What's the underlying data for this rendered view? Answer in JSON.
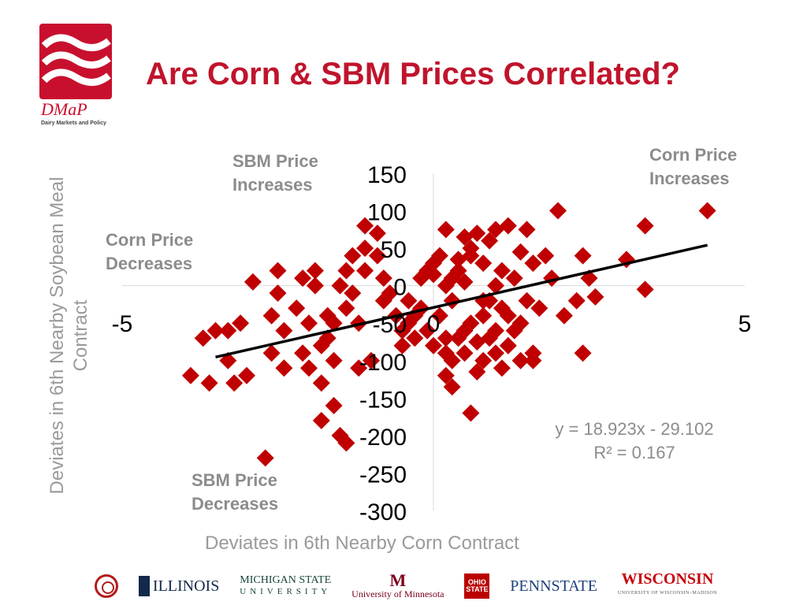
{
  "header": {
    "title": "Are Corn & SBM Prices Correlated?",
    "logo_text": "DMaP",
    "logo_subtitle": "Dairy Markets and Policy"
  },
  "quadrant_labels": {
    "corn_up": "Corn Price\nIncreases",
    "corn_down": "Corn Price\nDecreases",
    "sbm_up": "SBM Price\nIncreases",
    "sbm_down": "SBM Price\nDecreases"
  },
  "trendline": {
    "equation": "y = 18.923x - 29.102",
    "r_squared": "R² = 0.167"
  },
  "footer": {
    "illinois": "ILLINOIS",
    "michigan_line1": "MICHIGAN STATE",
    "michigan_line2": "UNIVERSITY",
    "minnesota_mark": "M",
    "minnesota": "University of Minnesota",
    "ohio_state": "OHIO STATE",
    "penn_state": "PENNSTATE",
    "wisconsin": "WISCONSIN",
    "wisconsin_sub": "UNIVERSITY OF WISCONSIN–MADISON"
  },
  "colors": {
    "title": "#c0142c",
    "points": "#c00000",
    "trendline": "#000000",
    "labels": "#8c8c8c"
  },
  "chart_data": {
    "type": "scatter",
    "title": "",
    "xlabel": "Deviates in 6th Nearby Corn Contract",
    "ylabel": "Deviates in 6th Nearby Soybean Meal Contract",
    "xlim": [
      -5,
      5
    ],
    "ylim": [
      -300,
      150
    ],
    "x_ticks": [
      "-5",
      "0",
      "5"
    ],
    "y_ticks": [
      "150",
      "100",
      "50",
      "0",
      "-50",
      "-100",
      "-150",
      "-200",
      "-250",
      "-300"
    ],
    "grid": false,
    "trendline": {
      "slope": 18.923,
      "intercept": -29.102
    },
    "series": [
      {
        "points": [
          [
            4.4,
            100
          ],
          [
            3.4,
            80
          ],
          [
            3.1,
            35
          ],
          [
            3.4,
            -5
          ],
          [
            2.0,
            100
          ],
          [
            2.4,
            40
          ],
          [
            2.1,
            -40
          ],
          [
            2.4,
            -90
          ],
          [
            2.5,
            10
          ],
          [
            2.3,
            -20
          ],
          [
            2.6,
            -15
          ],
          [
            1.5,
            75
          ],
          [
            1.2,
            80
          ],
          [
            1.0,
            75
          ],
          [
            0.9,
            60
          ],
          [
            0.7,
            70
          ],
          [
            0.5,
            65
          ],
          [
            0.2,
            75
          ],
          [
            0.6,
            40
          ],
          [
            0.8,
            30
          ],
          [
            0.3,
            10
          ],
          [
            0.5,
            5
          ],
          [
            0.2,
            0
          ],
          [
            0.0,
            15
          ],
          [
            0.1,
            40
          ],
          [
            -0.1,
            20
          ],
          [
            -0.2,
            10
          ],
          [
            1.8,
            40
          ],
          [
            1.4,
            45
          ],
          [
            1.1,
            20
          ],
          [
            1.0,
            0
          ],
          [
            0.8,
            -20
          ],
          [
            1.1,
            -30
          ],
          [
            0.8,
            -40
          ],
          [
            0.6,
            -50
          ],
          [
            0.5,
            -60
          ],
          [
            0.4,
            -70
          ],
          [
            0.7,
            -75
          ],
          [
            0.9,
            -70
          ],
          [
            1.0,
            -60
          ],
          [
            1.3,
            -60
          ],
          [
            1.2,
            -80
          ],
          [
            1.4,
            -100
          ],
          [
            1.1,
            -110
          ],
          [
            0.7,
            -115
          ],
          [
            0.3,
            -100
          ],
          [
            0.2,
            -120
          ],
          [
            0.3,
            -135
          ],
          [
            0.6,
            -170
          ],
          [
            0.8,
            -100
          ],
          [
            0.5,
            -90
          ],
          [
            0.0,
            -80
          ],
          [
            -0.3,
            -70
          ],
          [
            -0.5,
            -60
          ],
          [
            -0.6,
            -40
          ],
          [
            -0.4,
            -20
          ],
          [
            -0.7,
            -10
          ],
          [
            -0.8,
            10
          ],
          [
            -0.9,
            40
          ],
          [
            -1.1,
            50
          ],
          [
            -1.3,
            40
          ],
          [
            -1.4,
            20
          ],
          [
            -1.5,
            0
          ],
          [
            -1.4,
            -30
          ],
          [
            -1.2,
            -50
          ],
          [
            -1.6,
            -50
          ],
          [
            -1.7,
            -70
          ],
          [
            -1.8,
            -80
          ],
          [
            -1.6,
            -100
          ],
          [
            -2.0,
            -110
          ],
          [
            -1.8,
            -130
          ],
          [
            -1.6,
            -160
          ],
          [
            -1.5,
            -200
          ],
          [
            -1.4,
            -210
          ],
          [
            -1.8,
            -180
          ],
          [
            -2.1,
            -90
          ],
          [
            -2.4,
            -110
          ],
          [
            -2.6,
            -90
          ],
          [
            -2.4,
            -60
          ],
          [
            -2.6,
            -40
          ],
          [
            -2.0,
            -50
          ],
          [
            -1.7,
            -40
          ],
          [
            -3.1,
            -50
          ],
          [
            -3.3,
            -60
          ],
          [
            -3.5,
            -60
          ],
          [
            -3.7,
            -70
          ],
          [
            -3.3,
            -100
          ],
          [
            -3.0,
            -120
          ],
          [
            -3.2,
            -130
          ],
          [
            -3.6,
            -130
          ],
          [
            -3.9,
            -120
          ],
          [
            -2.1,
            10
          ],
          [
            -2.5,
            20
          ],
          [
            -1.1,
            80
          ],
          [
            -0.9,
            70
          ],
          [
            -0.3,
            -40
          ],
          [
            -0.4,
            -50
          ],
          [
            -0.5,
            -80
          ],
          [
            -1.0,
            -100
          ],
          [
            -1.2,
            -110
          ],
          [
            -2.9,
            5
          ],
          [
            -2.5,
            -10
          ],
          [
            -2.2,
            -30
          ],
          [
            -1.9,
            20
          ],
          [
            -1.9,
            0
          ],
          [
            0.1,
            -40
          ],
          [
            0.2,
            -70
          ],
          [
            0.4,
            20
          ],
          [
            0.6,
            50
          ],
          [
            -0.2,
            -30
          ],
          [
            1.6,
            30
          ],
          [
            1.9,
            10
          ],
          [
            -2.7,
            -230
          ],
          [
            1.3,
            10
          ],
          [
            0.4,
            35
          ],
          [
            -0.1,
            -60
          ],
          [
            0.9,
            -20
          ],
          [
            1.0,
            -90
          ],
          [
            1.6,
            -100
          ],
          [
            0.2,
            -90
          ],
          [
            0.0,
            30
          ],
          [
            0.3,
            -20
          ],
          [
            -0.8,
            -20
          ],
          [
            -1.1,
            20
          ],
          [
            -1.3,
            -10
          ],
          [
            1.2,
            -40
          ],
          [
            1.4,
            -50
          ],
          [
            1.6,
            -90
          ],
          [
            1.7,
            -30
          ],
          [
            1.5,
            -20
          ]
        ]
      }
    ]
  }
}
